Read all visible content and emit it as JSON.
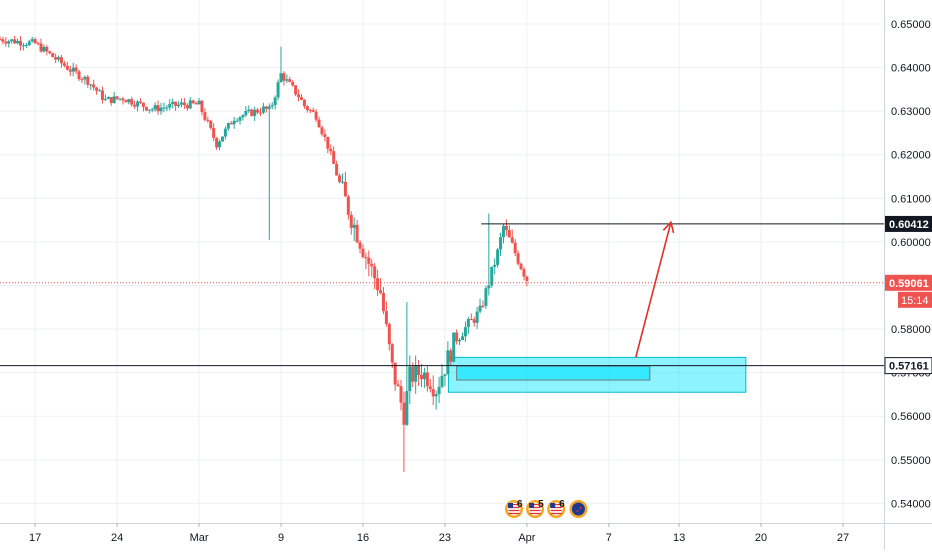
{
  "chart_data": {
    "type": "candlestick",
    "title": "",
    "xlabel": "",
    "ylabel": "",
    "ylim": [
      0.5355,
      0.6555
    ],
    "y_ticks": [
      "0.65000",
      "0.64000",
      "0.63000",
      "0.62000",
      "0.61000",
      "0.60000",
      "0.59000",
      "0.58000",
      "0.57000",
      "0.56000",
      "0.55000",
      "0.54000"
    ],
    "y_tick_values": [
      0.65,
      0.64,
      0.63,
      0.62,
      0.61,
      0.6,
      0.59,
      0.58,
      0.57,
      0.56,
      0.55,
      0.54
    ],
    "x_ticks": [
      "17",
      "24",
      "Mar",
      "9",
      "16",
      "23",
      "Apr",
      "7",
      "13",
      "20",
      "27"
    ],
    "x_tick_days": [
      0,
      7,
      14,
      21,
      28,
      35,
      42,
      49,
      55,
      62,
      69
    ],
    "x_domain_days": [
      -3,
      72.5
    ],
    "current_price_label": "0.59061",
    "current_price": 0.59061,
    "countdown_label": "15:14",
    "resistance_label": "0.60412",
    "resistance": 0.60412,
    "support_label": "0.57161",
    "support": 0.57161,
    "events": [
      {
        "icon": "us-flag-icon",
        "count": "6"
      },
      {
        "icon": "us-flag-icon",
        "count": "5"
      },
      {
        "icon": "us-flag-icon",
        "count": "6"
      },
      {
        "icon": "nz-flag-icon",
        "count": ""
      }
    ],
    "colors": {
      "up": "#26a69a",
      "down": "#ef5350",
      "zone": "#00e5ff",
      "arrow": "#e0312d",
      "price_line": "#ef5350"
    },
    "candles_anchor_days": [
      -3,
      0,
      3,
      4.5,
      6,
      7.5,
      10,
      12.5,
      14,
      15.5,
      17,
      19.5,
      20,
      20.3,
      21,
      22.5,
      23,
      24,
      25,
      26,
      27,
      28,
      29.5,
      30.5,
      31.5,
      32,
      33,
      33.8,
      34.2,
      35,
      35.8,
      36.5,
      38,
      39.5,
      40,
      41,
      42
    ],
    "candles_anchor_close": [
      0.6465,
      0.6455,
      0.6395,
      0.637,
      0.6325,
      0.633,
      0.6305,
      0.6315,
      0.6315,
      0.6225,
      0.6285,
      0.6305,
      0.6302,
      0.632,
      0.6385,
      0.6335,
      0.6312,
      0.629,
      0.622,
      0.6135,
      0.6055,
      0.5985,
      0.5885,
      0.571,
      0.5605,
      0.569,
      0.5702,
      0.5682,
      0.566,
      0.5715,
      0.577,
      0.5795,
      0.584,
      0.5975,
      0.6035,
      0.5975,
      0.5915
    ],
    "grid": true
  }
}
